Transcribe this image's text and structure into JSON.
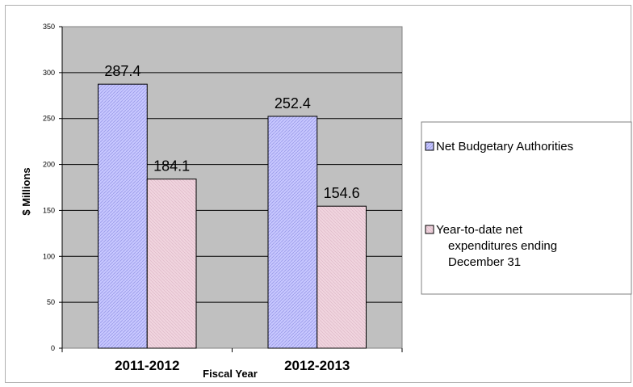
{
  "chart_data": {
    "type": "bar",
    "categories": [
      "2011-2012",
      "2012-2013"
    ],
    "series": [
      {
        "name": "Net Budgetary Authorities",
        "values": [
          287.4,
          252.4
        ],
        "color": "#c8c8ff"
      },
      {
        "name": "Year-to-date net expenditures ending December 31",
        "values": [
          184.1,
          154.6
        ],
        "color": "#f0d4de"
      }
    ],
    "data_labels": [
      [
        "287.4",
        "252.4"
      ],
      [
        "184.1",
        "154.6"
      ]
    ],
    "xlabel": "Fiscal Year",
    "ylabel": "$ Millions",
    "ylim": [
      0,
      350
    ],
    "yticks": [
      0,
      50,
      100,
      150,
      200,
      250,
      300,
      350
    ],
    "grid": true,
    "plot_background": "#c0c0c0",
    "legend_position": "right",
    "legend_lines": [
      [
        "Net Budgetary Authorities"
      ],
      [
        "Year-to-date net",
        "expenditures ending",
        "December 31"
      ]
    ]
  }
}
